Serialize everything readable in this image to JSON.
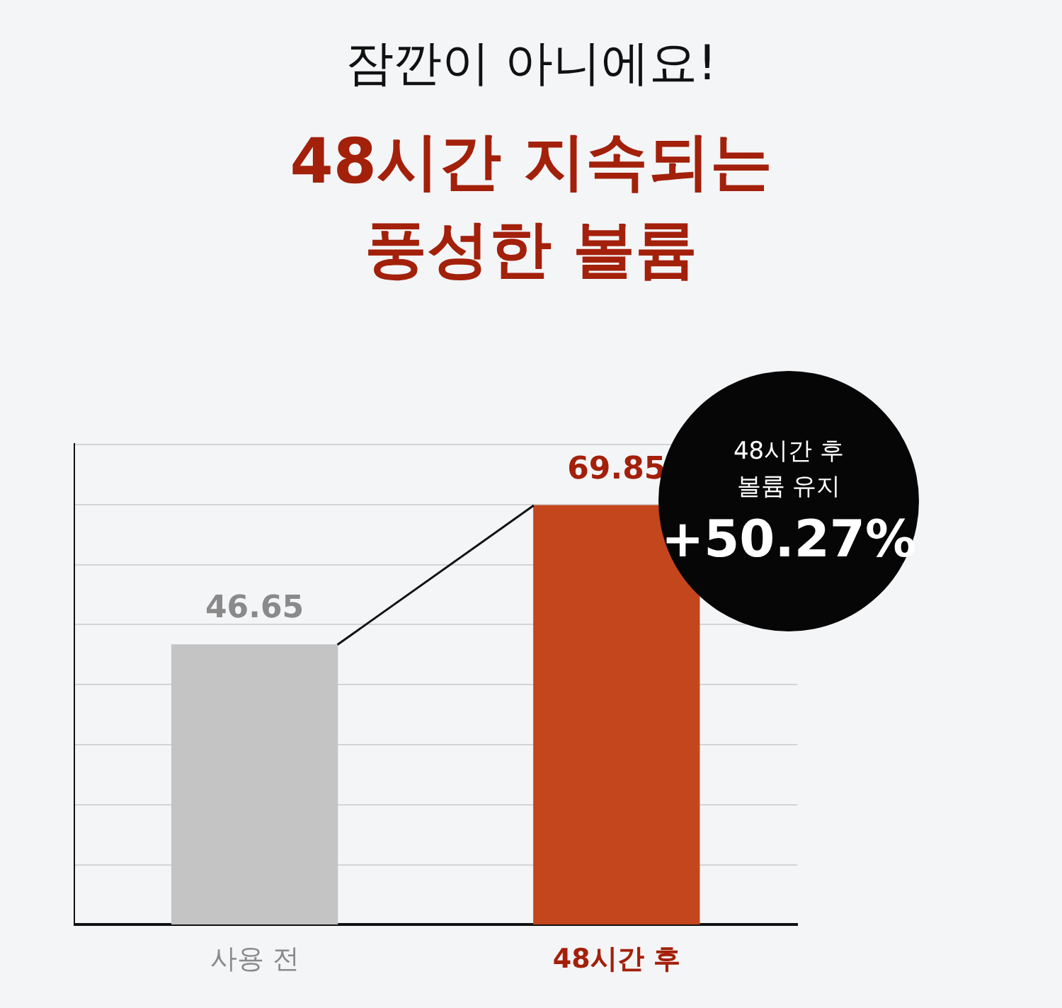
{
  "chart_data": {
    "type": "bar",
    "title": "잠깐이 아니에요!",
    "subtitle": "48시간 지속되는 풍성한 볼륨",
    "categories": [
      "사용 전",
      "48시간 후"
    ],
    "values": [
      46.65,
      69.85
    ],
    "colors": [
      "#c4c4c4",
      "#c4461c"
    ],
    "tick_labels": "x",
    "grid": "y",
    "data_labels": true,
    "annotations": [
      "48시간 후\n볼륨 유지",
      "+50.27%"
    ]
  }
}
